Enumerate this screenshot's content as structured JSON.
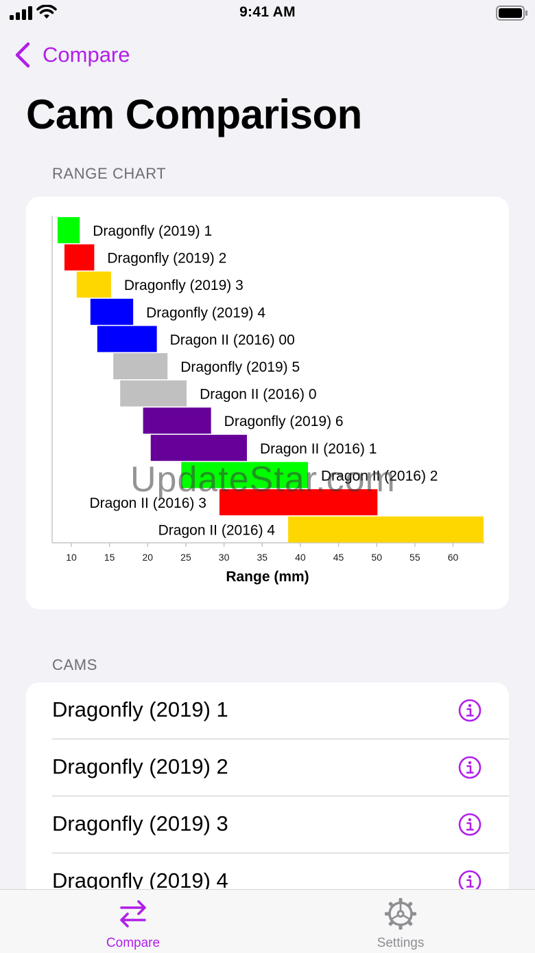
{
  "status": {
    "time": "9:41 AM"
  },
  "nav": {
    "back_label": "Compare"
  },
  "title": "Cam Comparison",
  "sections": {
    "chart": "RANGE CHART",
    "cams": "CAMS"
  },
  "colors": {
    "accent": "#b11fe8",
    "tab_inactive": "#8e8e93"
  },
  "chart_data": {
    "type": "bar",
    "orientation": "horizontal-range",
    "xlabel": "Range (mm)",
    "xlim": [
      8,
      64
    ],
    "xticks": [
      10,
      15,
      20,
      25,
      30,
      35,
      40,
      45,
      50,
      55,
      60
    ],
    "bars": [
      {
        "label": "Dragonfly (2019) 1",
        "min": 8.2,
        "max": 11.1,
        "color": "#00ff00",
        "label_side": "right"
      },
      {
        "label": "Dragonfly (2019) 2",
        "min": 9.1,
        "max": 13.0,
        "color": "#ff0000",
        "label_side": "right"
      },
      {
        "label": "Dragonfly (2019) 3",
        "min": 10.7,
        "max": 15.2,
        "color": "#ffd700",
        "label_side": "right"
      },
      {
        "label": "Dragonfly (2019) 4",
        "min": 12.5,
        "max": 18.1,
        "color": "#0000ff",
        "label_side": "right"
      },
      {
        "label": "Dragon II (2016) 00",
        "min": 13.4,
        "max": 21.2,
        "color": "#0000ff",
        "label_side": "right"
      },
      {
        "label": "Dragonfly (2019) 5",
        "min": 15.5,
        "max": 22.6,
        "color": "#c0c0c0",
        "label_side": "right"
      },
      {
        "label": "Dragon II (2016) 0",
        "min": 16.4,
        "max": 25.1,
        "color": "#c0c0c0",
        "label_side": "right"
      },
      {
        "label": "Dragonfly (2019) 6",
        "min": 19.4,
        "max": 28.3,
        "color": "#660099",
        "label_side": "right"
      },
      {
        "label": "Dragon II (2016) 1",
        "min": 20.4,
        "max": 33.0,
        "color": "#660099",
        "label_side": "right"
      },
      {
        "label": "Dragon II (2016) 2",
        "min": 24.4,
        "max": 41.0,
        "color": "#00ff00",
        "label_side": "right"
      },
      {
        "label": "Dragon II (2016) 3",
        "min": 29.4,
        "max": 50.1,
        "color": "#ff0000",
        "label_side": "left"
      },
      {
        "label": "Dragon II (2016) 4",
        "min": 38.4,
        "max": 64.0,
        "color": "#ffd700",
        "label_side": "left"
      }
    ]
  },
  "watermark": "UpdateStar.com",
  "cams": [
    {
      "name": "Dragonfly (2019) 1"
    },
    {
      "name": "Dragonfly (2019) 2"
    },
    {
      "name": "Dragonfly (2019) 3"
    },
    {
      "name": "Dragonfly (2019) 4"
    }
  ],
  "tabs": [
    {
      "label": "Compare",
      "icon": "arrows-swap-icon",
      "selected": true
    },
    {
      "label": "Settings",
      "icon": "gear-icon",
      "selected": false
    }
  ]
}
